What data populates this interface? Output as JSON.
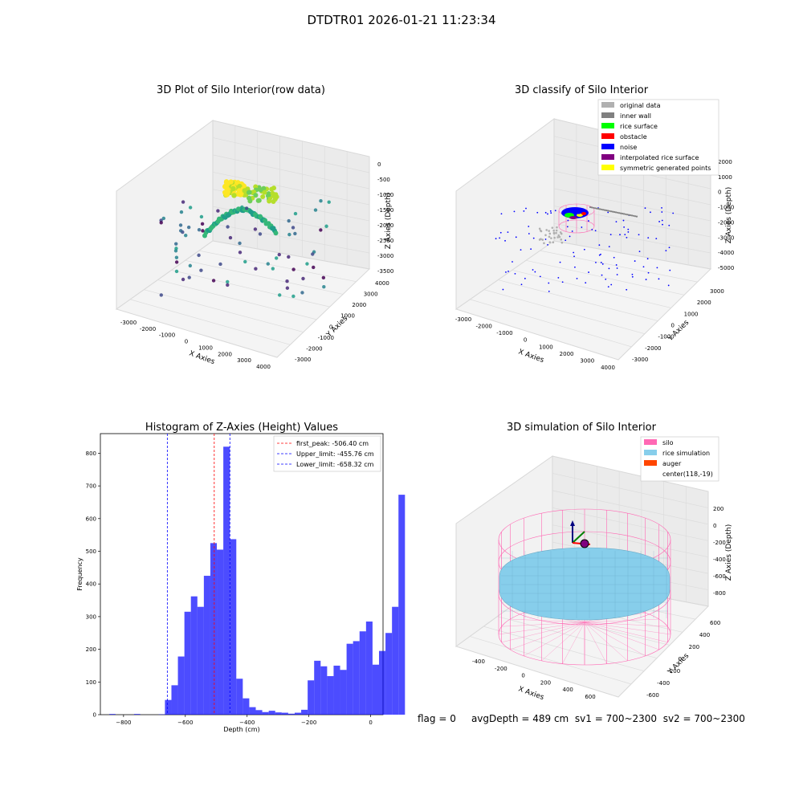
{
  "figure": {
    "suptitle": "DTDTR01 2026-01-21 11:23:34",
    "status": {
      "flag": "flag = 0",
      "avg_depth": "avgDepth = 489 cm",
      "sv1": "sv1 = 700~2300",
      "sv2": "sv2 = 700~2300"
    }
  },
  "chart_data": [
    {
      "type": "scatter",
      "panel": "top-left",
      "title": "3D Plot of Silo Interior(row data)",
      "xlabel": "X Axies",
      "ylabel": "Y Axies",
      "zlabel": "Z Axies (Depth)",
      "x_ticks": [
        "-3000",
        "-2000",
        "-1000",
        "0",
        "1000",
        "2000",
        "3000",
        "4000"
      ],
      "y_ticks": [
        "-3000",
        "-2000",
        "-1000",
        "0",
        "1000",
        "2000",
        "3000",
        "4000"
      ],
      "z_ticks": [
        "-3500",
        "-3000",
        "-2500",
        "-2000",
        "-1500",
        "-1000",
        "-500",
        "0"
      ],
      "colormap": "viridis",
      "grid": true
    },
    {
      "type": "scatter",
      "panel": "top-right",
      "title": "3D classify of Silo Interior",
      "xlabel": "X Axies",
      "ylabel": "Y Axies",
      "zlabel": "Z Axies (Depth)",
      "x_ticks": [
        "-3000",
        "-2000",
        "-1000",
        "0",
        "1000",
        "2000",
        "3000",
        "4000"
      ],
      "y_ticks": [
        "-3000",
        "-2000",
        "-1000",
        "0",
        "1000",
        "2000",
        "3000"
      ],
      "z_ticks": [
        "-5000",
        "-4000",
        "-3000",
        "-2000",
        "-1000",
        "0",
        "1000",
        "2000"
      ],
      "legend_position": "top-right",
      "legend": [
        {
          "label": "original data",
          "color": "#b0b0b0"
        },
        {
          "label": "inner wall",
          "color": "#808080"
        },
        {
          "label": "rice surface",
          "color": "#00ff00"
        },
        {
          "label": "obstacle",
          "color": "#ff0000"
        },
        {
          "label": "noise",
          "color": "#0000ff"
        },
        {
          "label": "interpolated rice surface",
          "color": "#800080"
        },
        {
          "label": "symmetric generated points",
          "color": "#ffff00"
        }
      ],
      "grid": true
    },
    {
      "type": "bar",
      "panel": "bottom-left",
      "title": "Histogram of Z-Axies (Height) Values",
      "xlabel": "Depth (cm)",
      "ylabel": "Frequency",
      "xlim": [
        -875,
        40
      ],
      "ylim": [
        0,
        860
      ],
      "x_ticks": [
        -800,
        -600,
        -400,
        -200,
        0
      ],
      "y_ticks": [
        0,
        100,
        200,
        300,
        400,
        500,
        600,
        700,
        800
      ],
      "bar_color": "#0000ff",
      "bins": [
        {
          "x0": -846,
          "x1": -826,
          "value": 2
        },
        {
          "x0": -766,
          "x1": -746,
          "value": 2
        },
        {
          "x0": -686,
          "x1": -666,
          "value": 1
        },
        {
          "x0": -666,
          "x1": -645,
          "value": 45
        },
        {
          "x0": -645,
          "x1": -624,
          "value": 90
        },
        {
          "x0": -624,
          "x1": -603,
          "value": 178
        },
        {
          "x0": -603,
          "x1": -582,
          "value": 315
        },
        {
          "x0": -582,
          "x1": -561,
          "value": 362
        },
        {
          "x0": -561,
          "x1": -540,
          "value": 330
        },
        {
          "x0": -540,
          "x1": -519,
          "value": 425
        },
        {
          "x0": -519,
          "x1": -498,
          "value": 525
        },
        {
          "x0": -498,
          "x1": -477,
          "value": 505
        },
        {
          "x0": -477,
          "x1": -456,
          "value": 820
        },
        {
          "x0": -456,
          "x1": -435,
          "value": 537
        },
        {
          "x0": -435,
          "x1": -414,
          "value": 110
        },
        {
          "x0": -414,
          "x1": -393,
          "value": 50
        },
        {
          "x0": -393,
          "x1": -372,
          "value": 23
        },
        {
          "x0": -372,
          "x1": -351,
          "value": 14
        },
        {
          "x0": -351,
          "x1": -330,
          "value": 8
        },
        {
          "x0": -330,
          "x1": -309,
          "value": 12
        },
        {
          "x0": -309,
          "x1": -288,
          "value": 7
        },
        {
          "x0": -288,
          "x1": -267,
          "value": 6
        },
        {
          "x0": -267,
          "x1": -246,
          "value": 3
        },
        {
          "x0": -246,
          "x1": -225,
          "value": 6
        },
        {
          "x0": -225,
          "x1": -204,
          "value": 15
        },
        {
          "x0": -204,
          "x1": -183,
          "value": 105
        },
        {
          "x0": -183,
          "x1": -162,
          "value": 165
        },
        {
          "x0": -162,
          "x1": -141,
          "value": 148
        },
        {
          "x0": -141,
          "x1": -120,
          "value": 118
        },
        {
          "x0": -120,
          "x1": -99,
          "value": 150
        },
        {
          "x0": -99,
          "x1": -78,
          "value": 137
        },
        {
          "x0": -78,
          "x1": -57,
          "value": 217
        },
        {
          "x0": -57,
          "x1": -36,
          "value": 225
        },
        {
          "x0": -36,
          "x1": -15,
          "value": 255
        },
        {
          "x0": -15,
          "x1": 6,
          "value": 285
        },
        {
          "x0": 6,
          "x1": 27,
          "value": 153
        },
        {
          "x0": 27,
          "x1": 48,
          "value": 195
        },
        {
          "x0": 48,
          "x1": 69,
          "value": 250
        },
        {
          "x0": 69,
          "x1": 90,
          "value": 330
        },
        {
          "x0": 90,
          "x1": 111,
          "value": 673
        }
      ],
      "vlines": [
        {
          "x": -506.4,
          "color": "#ff0000",
          "label": "first_peak: -506.40 cm"
        },
        {
          "x": -455.76,
          "color": "#0000ff",
          "label": "Upper_limit: -455.76 cm"
        },
        {
          "x": -658.32,
          "color": "#0000ff",
          "label": "Lower_limit: -658.32 cm"
        }
      ],
      "legend_position": "top-right"
    },
    {
      "type": "surface",
      "panel": "bottom-right",
      "title": "3D simulation of Silo Interior",
      "xlabel": "X Axies",
      "ylabel": "Y Axies",
      "zlabel": "Z Axies (Depth)",
      "x_ticks": [
        "-400",
        "-200",
        "0",
        "200",
        "400",
        "600"
      ],
      "y_ticks": [
        "-600",
        "-400",
        "-200",
        "0",
        "200",
        "400",
        "600"
      ],
      "z_ticks": [
        "-800",
        "-600",
        "-400",
        "-200",
        "0",
        "200"
      ],
      "legend_position": "top-right",
      "legend": [
        {
          "label": "silo",
          "color": "#ff69b4"
        },
        {
          "label": "rice simulation",
          "color": "#87ceeb"
        },
        {
          "label": "auger",
          "color": "#ff4500"
        },
        {
          "label": "center(118,-19)",
          "color": ""
        }
      ],
      "grid": true
    }
  ]
}
